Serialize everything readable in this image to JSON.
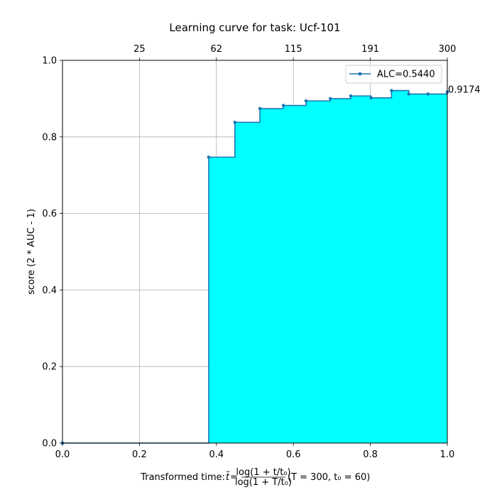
{
  "chart_data": {
    "type": "area",
    "title": "Learning curve for task: Ucf-101",
    "xlabel": "Transformed time: t̃ = log(1 + t/t₀) / log(1 + T/t₀)  (T = 300,  t₀ = 60)",
    "xlabel_parts": {
      "prefix": "Transformed time: ",
      "t_tilde": "t̃",
      "equals": " = ",
      "frac_numerator": "log(1 + t/t₀)",
      "frac_denominator": "log(1 + T/t₀)",
      "suffix": "  (T = 300,  t₀ = 60)"
    },
    "ylabel": "score (2 * AUC - 1)",
    "xlim": [
      0.0,
      1.0
    ],
    "ylim": [
      0.0,
      1.0
    ],
    "x_ticks": [
      {
        "value": 0.0,
        "label": "0.0"
      },
      {
        "value": 0.2,
        "label": "0.2"
      },
      {
        "value": 0.4,
        "label": "0.4"
      },
      {
        "value": 0.6,
        "label": "0.6"
      },
      {
        "value": 0.8,
        "label": "0.8"
      },
      {
        "value": 1.0,
        "label": "1.0"
      }
    ],
    "y_ticks": [
      {
        "value": 0.0,
        "label": "0.0"
      },
      {
        "value": 0.2,
        "label": "0.2"
      },
      {
        "value": 0.4,
        "label": "0.4"
      },
      {
        "value": 0.6,
        "label": "0.6"
      },
      {
        "value": 0.8,
        "label": "0.8"
      },
      {
        "value": 1.0,
        "label": "1.0"
      }
    ],
    "top_ticks": [
      {
        "value": 0.2,
        "label": "25"
      },
      {
        "value": 0.4,
        "label": "62"
      },
      {
        "value": 0.6,
        "label": "115"
      },
      {
        "value": 0.8,
        "label": "191"
      },
      {
        "value": 1.0,
        "label": "300"
      }
    ],
    "grid": true,
    "step": "post",
    "series": [
      {
        "name": "ALC=0.5440",
        "x": [
          0.0,
          0.38,
          0.448,
          0.513,
          0.574,
          0.633,
          0.696,
          0.749,
          0.802,
          0.855,
          0.9,
          0.95,
          1.0
        ],
        "y": [
          0.0,
          0.747,
          0.838,
          0.874,
          0.882,
          0.894,
          0.9,
          0.907,
          0.902,
          0.921,
          0.912,
          0.912,
          0.9174
        ]
      }
    ],
    "final_value_label": "0.9174",
    "legend": {
      "position": "top-right",
      "entries": [
        "ALC=0.5440"
      ]
    },
    "colors": {
      "line": "#1f77b4",
      "fill": "#00ffff",
      "grid": "#b0b0b0"
    }
  }
}
